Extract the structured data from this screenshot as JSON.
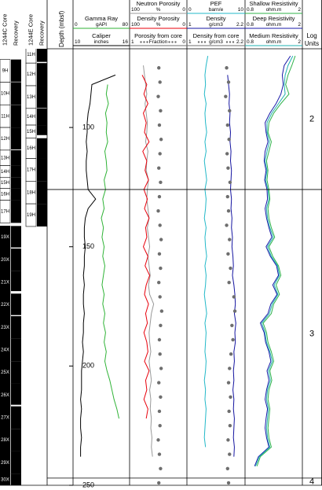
{
  "chart_data": {
    "type": "well-log",
    "ylabel": "Depth (mbsf)",
    "ylim": [
      67,
      250
    ],
    "yticks": [
      100,
      150,
      200,
      250
    ],
    "depth": [
      70,
      74,
      78,
      82,
      86,
      90,
      94,
      98,
      102,
      106,
      110,
      114,
      118,
      122,
      126,
      130,
      134,
      138,
      142,
      146,
      150,
      154,
      158,
      162,
      166,
      170,
      174,
      178,
      182,
      186,
      190,
      194,
      198,
      202,
      206,
      210,
      214,
      218,
      222,
      226,
      230,
      234,
      238,
      242
    ],
    "core_depth": [
      75,
      81,
      87,
      93,
      99,
      105,
      111,
      117,
      123,
      129,
      135,
      141,
      147,
      153,
      159,
      165,
      171,
      177,
      183,
      189,
      195,
      201,
      207,
      213,
      219,
      225,
      231,
      237,
      243,
      249
    ],
    "holes": [
      {
        "hole_label": "1244C Core",
        "recovery_label": "Recovery",
        "cores": [
          {
            "label": "9H",
            "top": 71.5,
            "bottom": 81,
            "recovered": 9.3
          },
          {
            "label": "10H",
            "top": 81,
            "bottom": 90.5,
            "recovered": 9.4
          },
          {
            "label": "11H",
            "top": 90.5,
            "bottom": 100,
            "recovered": 9.5
          },
          {
            "label": "12H",
            "top": 100,
            "bottom": 109.5,
            "recovered": 9.2
          },
          {
            "label": "13H",
            "top": 109.5,
            "bottom": 116,
            "recovered": 6.5
          },
          {
            "label": "14H",
            "top": 116,
            "bottom": 121,
            "recovered": 5
          },
          {
            "label": "15H",
            "top": 121,
            "bottom": 125.5,
            "recovered": 4.5
          },
          {
            "label": "16H",
            "top": 125.5,
            "bottom": 130.5,
            "recovered": 5
          },
          {
            "label": "17H",
            "top": 130.5,
            "bottom": 140,
            "recovered": 9.5
          },
          {
            "label": "19X",
            "top": 141.3,
            "bottom": 150.75,
            "recovered": 9.0
          },
          {
            "label": "20X",
            "top": 150.75,
            "bottom": 160.2,
            "recovered": 9.45
          },
          {
            "label": "21X",
            "top": 160.2,
            "bottom": 169.65,
            "recovered": 8.4
          },
          {
            "label": "22X",
            "top": 169.65,
            "bottom": 179.1,
            "recovered": 9.0
          },
          {
            "label": "23X",
            "top": 179.1,
            "bottom": 188.55,
            "recovered": 9.45
          },
          {
            "label": "24X",
            "top": 188.55,
            "bottom": 198,
            "recovered": 9.45
          },
          {
            "label": "25X",
            "top": 198,
            "bottom": 207.45,
            "recovered": 9.45
          },
          {
            "label": "26X",
            "top": 207.45,
            "bottom": 216.9,
            "recovered": 8.8
          },
          {
            "label": "27X",
            "top": 216.9,
            "bottom": 226.35,
            "recovered": 9.45
          },
          {
            "label": "28X",
            "top": 226.35,
            "bottom": 235.8,
            "recovered": 9.45
          },
          {
            "label": "29X",
            "top": 235.8,
            "bottom": 245.25,
            "recovered": 9.45
          },
          {
            "label": "30X",
            "top": 245.25,
            "bottom": 254.7,
            "recovered": 9.45
          }
        ]
      },
      {
        "hole_label": "1244E Core",
        "recovery_label": "Recovery",
        "cores": [
          {
            "label": "11H",
            "top": 66,
            "bottom": 73,
            "recovered": 6.5
          },
          {
            "label": "12H",
            "top": 73,
            "bottom": 82.5,
            "recovered": 9.5
          },
          {
            "label": "13H",
            "top": 82.5,
            "bottom": 92,
            "recovered": 9.3
          },
          {
            "label": "14H",
            "top": 92,
            "bottom": 99,
            "recovered": 7
          },
          {
            "label": "15H",
            "top": 99,
            "bottom": 104.5,
            "recovered": 4.2
          },
          {
            "label": "16H",
            "top": 104.5,
            "bottom": 113,
            "recovered": 8.5
          },
          {
            "label": "17H",
            "top": 113,
            "bottom": 122.5,
            "recovered": 9.5
          },
          {
            "label": "18H",
            "top": 122.5,
            "bottom": 132,
            "recovered": 9.5
          },
          {
            "label": "19H",
            "top": 132,
            "bottom": 141.5,
            "recovered": 9.5
          }
        ]
      }
    ],
    "tracks": [
      {
        "curves": [
          {
            "name": "Gamma Ray",
            "unit": "gAPI",
            "scale": [
              0,
              80
            ],
            "color": "#2fb336",
            "style": "line",
            "values": [
              null,
              null,
              null,
              49,
              47,
              50,
              46,
              48,
              47,
              49,
              45,
              47,
              48,
              44,
              46,
              42,
              44,
              40,
              43,
              41,
              44,
              42,
              45,
              43,
              41,
              44,
              42,
              45,
              43,
              46,
              44,
              47,
              45,
              48,
              52,
              55,
              58,
              62,
              65,
              null,
              null,
              null,
              null,
              null
            ]
          },
          {
            "name": "Caliper",
            "unit": "inches",
            "scale": [
              10,
              16
            ],
            "color": "#000000",
            "style": "line",
            "values": [
              null,
              null,
              14.5,
              12.0,
              11.9,
              11.8,
              11.6,
              11.5,
              11.5,
              11.4,
              11.5,
              11.4,
              11.4,
              11.5,
              11.6,
              12.4,
              11.6,
              11.3,
              11.2,
              11.2,
              11.3,
              11.2,
              11.2,
              11.1,
              11.2,
              11.1,
              11.1,
              11.2,
              11.1,
              11.1,
              11.0,
              11.1,
              11.0,
              10.9,
              10.9,
              10.9,
              10.8,
              10.9,
              10.8,
              10.8,
              10.9,
              10.8,
              10.8,
              null
            ]
          }
        ]
      },
      {
        "curves": [
          {
            "name": "Neutron Porosity",
            "unit": "%",
            "scale": [
              100,
              0
            ],
            "color": "#999999",
            "style": "line",
            "values": [
              null,
              76,
              74,
              72,
              70,
              73,
              71,
              69,
              70,
              72,
              68,
              70,
              71,
              67,
              69,
              70,
              68,
              66,
              69,
              67,
              65,
              68,
              66,
              64,
              67,
              65,
              58,
              62,
              64,
              66,
              65,
              63,
              66,
              64,
              62,
              65,
              63,
              64,
              62,
              63,
              61,
              62,
              60,
              null
            ]
          },
          {
            "name": "Density Porosity",
            "unit": "%",
            "scale": [
              100,
              0
            ],
            "color": "#e8000b",
            "style": "line",
            "values": [
              null,
              null,
              78,
              70,
              75,
              68,
              76,
              71,
              74,
              66,
              77,
              70,
              73,
              67,
              75,
              69,
              74,
              66,
              72,
              70,
              76,
              68,
              73,
              65,
              71,
              74,
              67,
              72,
              69,
              75,
              70,
              68,
              74,
              66,
              72,
              70,
              75,
              68,
              71,
              null,
              null,
              null,
              null,
              null
            ]
          },
          {
            "name": "Porosity from core",
            "unit": "Fraction",
            "scale": [
              1,
              0
            ],
            "color": "#6e6e6e",
            "style": "dots",
            "values": [
              0.49,
              0.47,
              0.5,
              0.46,
              0.48,
              0.45,
              0.47,
              0.49,
              0.46,
              0.48,
              0.5,
              0.47,
              0.45,
              0.48,
              0.46,
              0.49,
              0.47,
              0.44,
              0.46,
              0.48,
              0.47,
              0.45,
              0.49,
              0.46,
              0.48,
              0.47,
              0.5,
              0.48,
              0.46,
              0.49
            ]
          }
        ]
      },
      {
        "curves": [
          {
            "name": "PEF",
            "unit": "barn/e",
            "scale": [
              0,
              10
            ],
            "color": "#22b8c8",
            "style": "line",
            "values": [
              3.6,
              3.3,
              3.1,
              3.2,
              3.0,
              3.3,
              3.1,
              3.2,
              3.4,
              3.1,
              3.3,
              3.0,
              3.2,
              3.4,
              3.1,
              3.3,
              3.2,
              3.0,
              3.3,
              3.1,
              3.2,
              3.4,
              3.1,
              3.3,
              3.2,
              3.0,
              3.2,
              3.4,
              3.1,
              3.3,
              3.2,
              3.1,
              3.3,
              3.2,
              3.0,
              3.2,
              3.1,
              3.3,
              3.2,
              3.1,
              3.0,
              3.2,
              null,
              null
            ]
          },
          {
            "name": "Density",
            "unit": "g/cm3",
            "scale": [
              1,
              2.2
            ],
            "color": "#1414a0",
            "style": "line",
            "values": [
              null,
              null,
              1.84,
              1.86,
              1.88,
              1.87,
              1.89,
              1.88,
              1.9,
              1.89,
              1.91,
              1.9,
              1.92,
              1.91,
              1.9,
              1.92,
              1.91,
              1.93,
              1.92,
              1.94,
              1.93,
              1.95,
              1.96,
              1.94,
              1.97,
              1.99,
              2.0,
              1.98,
              2.01,
              1.99,
              2.0,
              1.97,
              1.98,
              1.96,
              1.97,
              1.95,
              1.97,
              1.96,
              1.98,
              1.97,
              1.96,
              1.98,
              1.97,
              null
            ]
          },
          {
            "name": "Density from core",
            "unit": "g/cm3",
            "scale": [
              1,
              2.2
            ],
            "color": "#6e6e6e",
            "style": "dots",
            "values": [
              1.82,
              1.86,
              1.8,
              1.88,
              1.84,
              1.87,
              1.83,
              1.85,
              1.89,
              1.84,
              1.86,
              1.82,
              1.88,
              1.85,
              1.9,
              1.87,
              1.97,
              1.99,
              1.93,
              1.95,
              1.91,
              1.88,
              1.86,
              1.9,
              1.87,
              1.89,
              1.85,
              1.88,
              1.84,
              1.86
            ]
          }
        ]
      },
      {
        "curves": [
          {
            "name": "Shallow Resistivity",
            "unit": "ohm.m",
            "scale": [
              0.8,
              2
            ],
            "color": "#2fb34a",
            "style": "line",
            "values": [
              1.85,
              1.78,
              1.7,
              1.65,
              1.72,
              1.55,
              1.4,
              1.3,
              1.28,
              1.35,
              1.3,
              1.25,
              1.28,
              1.26,
              1.3,
              1.32,
              1.28,
              1.3,
              1.35,
              1.42,
              1.3,
              1.38,
              1.5,
              1.55,
              1.45,
              1.52,
              1.4,
              1.35,
              1.18,
              1.25,
              1.28,
              1.35,
              1.4,
              1.32,
              1.36,
              1.3,
              1.28,
              1.32,
              1.3,
              1.28,
              1.3,
              1.35,
              1.12,
              1.05
            ]
          },
          {
            "name": "Deep Resistivity",
            "unit": "ohm.m",
            "scale": [
              0.8,
              2
            ],
            "color": "#1a1aa8",
            "style": "line",
            "values": [
              1.75,
              1.62,
              1.58,
              1.6,
              1.55,
              1.45,
              1.32,
              1.22,
              1.24,
              1.28,
              1.22,
              1.2,
              1.24,
              1.21,
              1.26,
              1.27,
              1.22,
              1.25,
              1.3,
              1.36,
              1.24,
              1.33,
              1.46,
              1.5,
              1.38,
              1.47,
              1.34,
              1.28,
              1.12,
              1.2,
              1.23,
              1.3,
              1.34,
              1.26,
              1.3,
              1.25,
              1.22,
              1.27,
              1.24,
              1.22,
              1.25,
              1.3,
              1.08,
              1.0
            ]
          },
          {
            "name": "Medium Resistivity",
            "unit": "ohm.m",
            "scale": [
              0.8,
              2
            ],
            "color": "#1fb0b0",
            "style": "line",
            "values": [
              1.8,
              1.7,
              1.64,
              1.62,
              1.64,
              1.5,
              1.36,
              1.26,
              1.26,
              1.31,
              1.26,
              1.22,
              1.26,
              1.23,
              1.28,
              1.3,
              1.25,
              1.27,
              1.32,
              1.39,
              1.27,
              1.35,
              1.48,
              1.52,
              1.41,
              1.49,
              1.37,
              1.31,
              1.15,
              1.22,
              1.25,
              1.32,
              1.37,
              1.29,
              1.33,
              1.27,
              1.25,
              1.29,
              1.27,
              1.25,
              1.27,
              1.32,
              1.1,
              1.02
            ]
          }
        ]
      }
    ],
    "log_units": {
      "title": [
        "Log",
        "Units"
      ],
      "units": [
        {
          "label": "2",
          "top": 67,
          "bottom": 126
        },
        {
          "label": "3",
          "top": 126,
          "bottom": 247
        },
        {
          "label": "4",
          "top": 247,
          "bottom": 250
        }
      ]
    }
  }
}
